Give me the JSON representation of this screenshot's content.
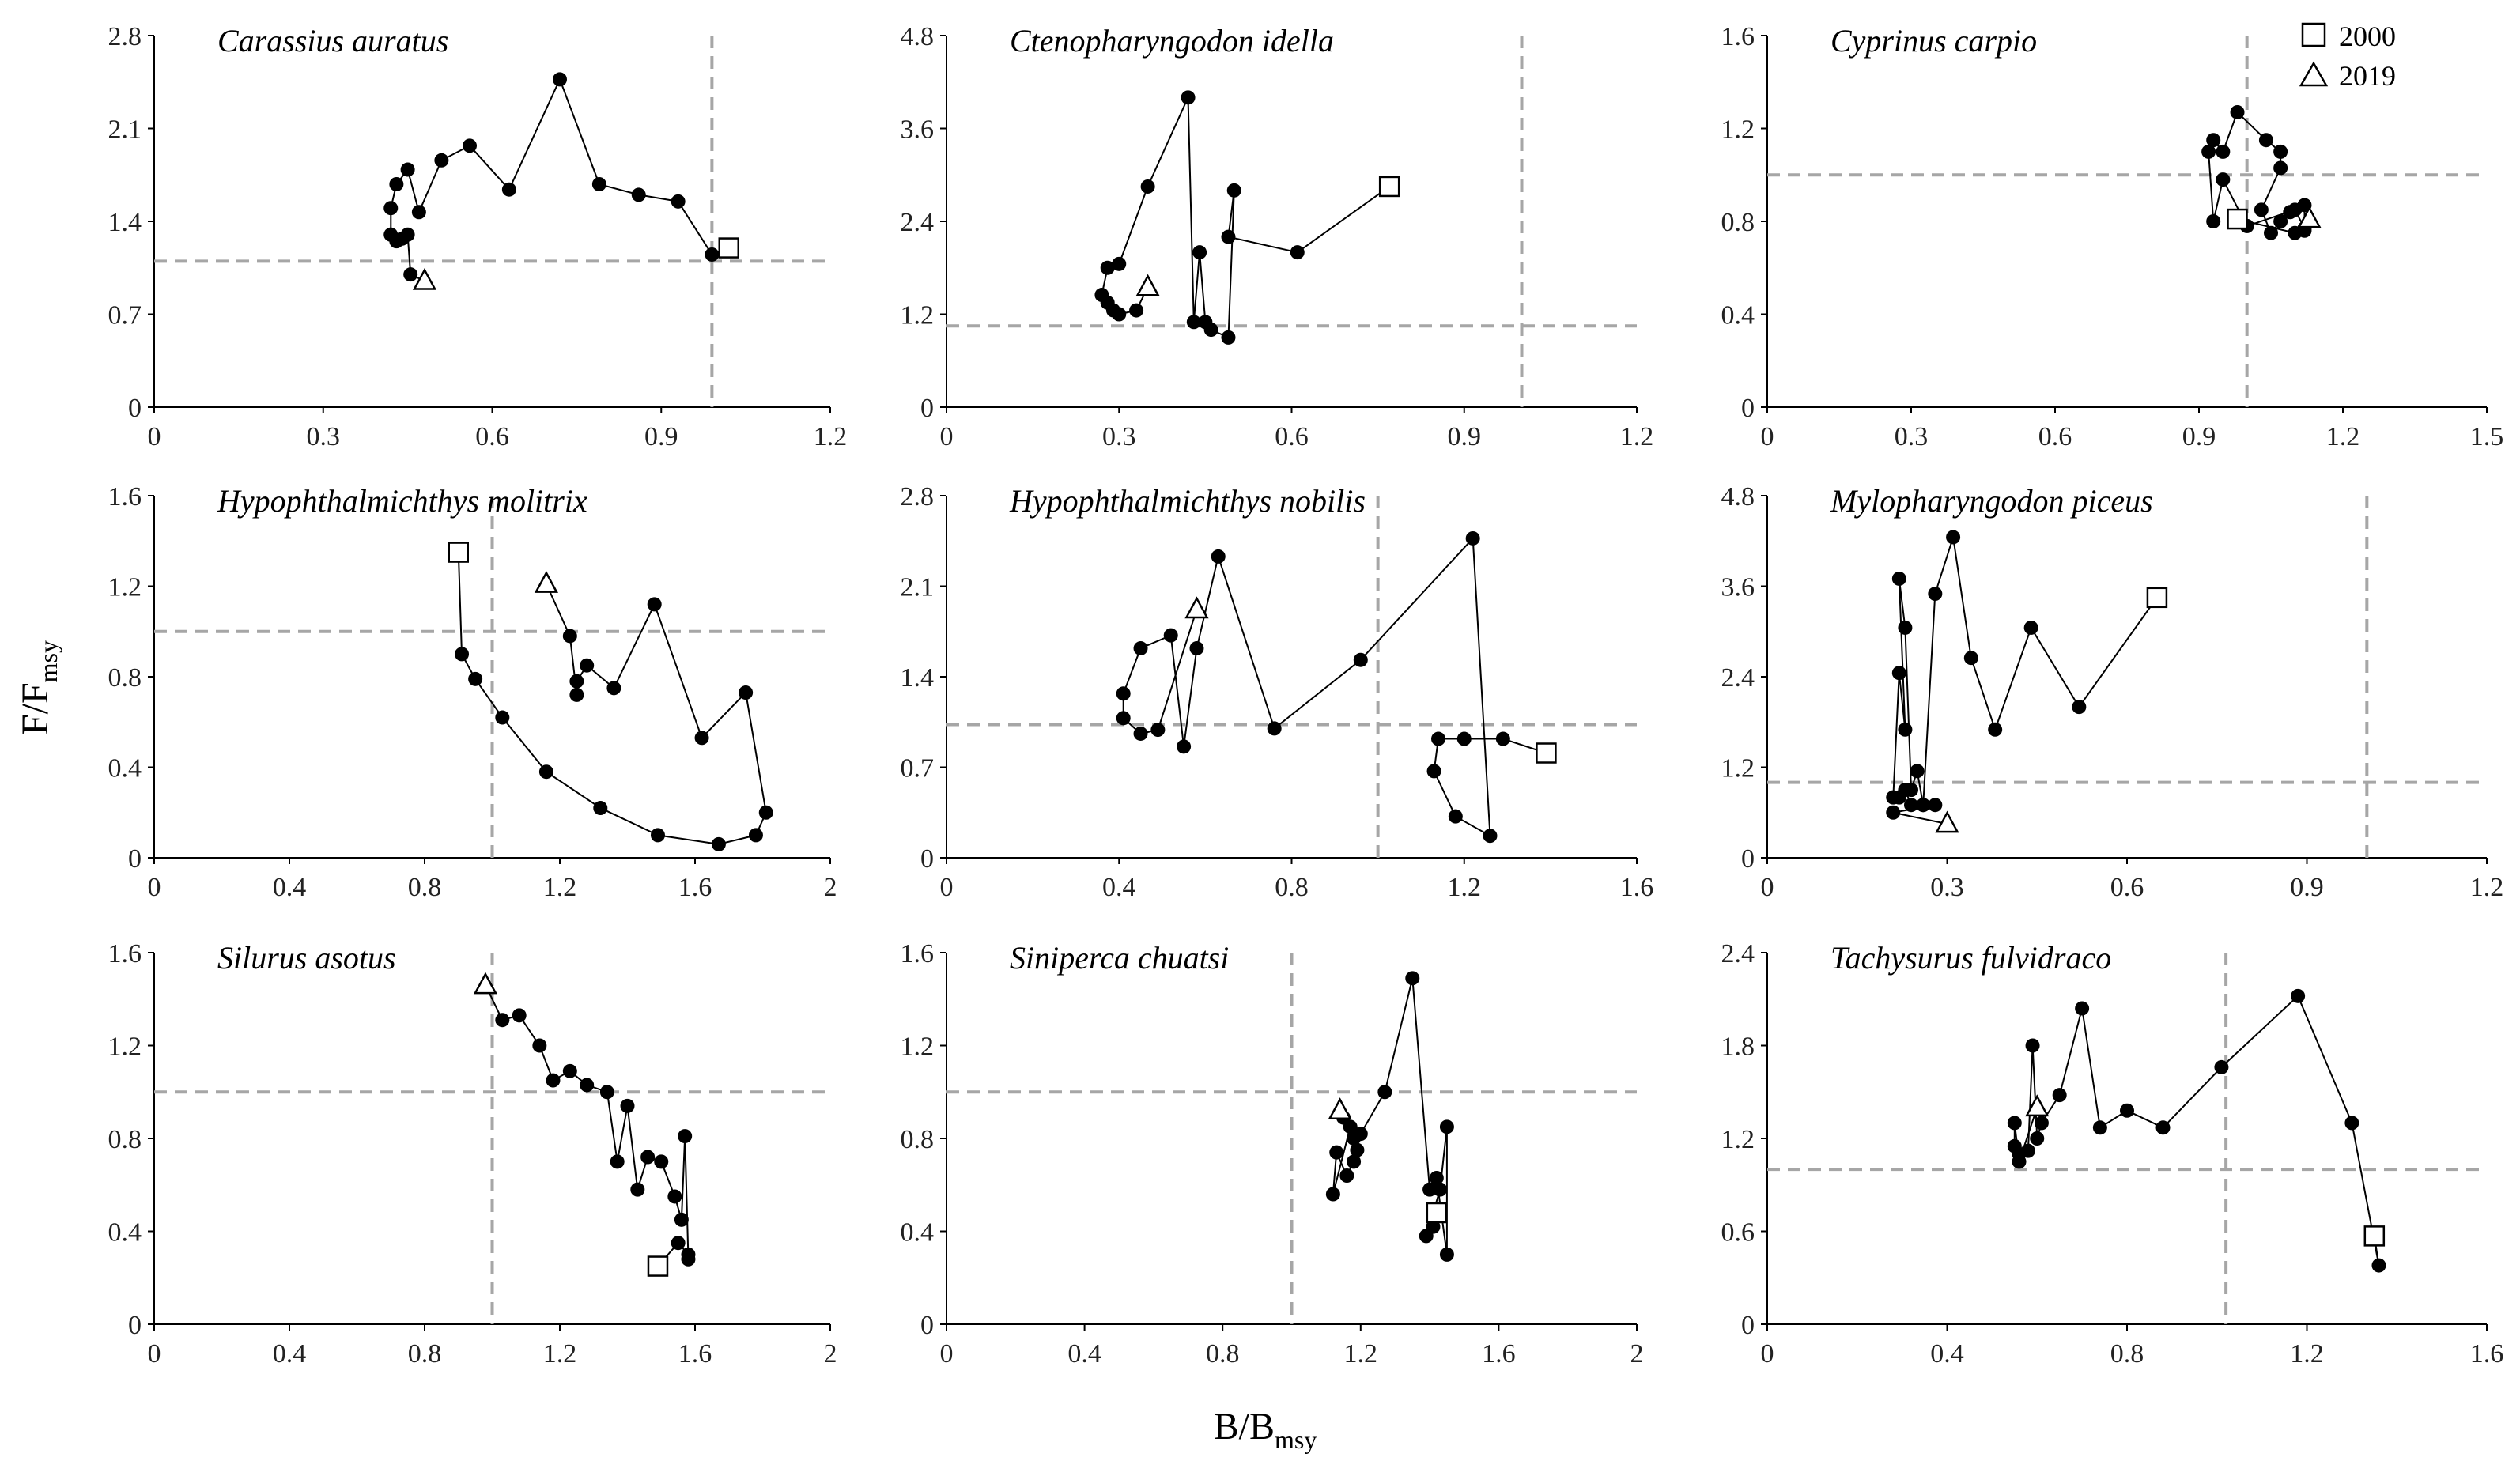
{
  "chart_data": {
    "type": "scatter",
    "xlabel": {
      "main": "B/B",
      "sub": "msy"
    },
    "ylabel": {
      "main": "F/F",
      "sub": "msy"
    },
    "legend": {
      "position": "top-right",
      "entries": [
        {
          "marker": "square",
          "label": "2000"
        },
        {
          "marker": "triangle",
          "label": "2019"
        }
      ]
    },
    "colors": {
      "series": "#000000",
      "reference": "#a6a6a6",
      "axis": "#000000",
      "marker_fill": "#000000",
      "open_marker_fill": "#ffffff"
    },
    "panels": [
      {
        "title": "Carassius auratus",
        "xlim": [
          0,
          1.2
        ],
        "xticks": [
          "0",
          "0.3",
          "0.6",
          "0.9",
          "1.2"
        ],
        "ylim": [
          0,
          2.8
        ],
        "yticks": [
          "0",
          "0.7",
          "1.4",
          "2.1",
          "2.8"
        ],
        "ref_x": 0.99,
        "ref_y": 1.1,
        "start": [
          1.02,
          1.2
        ],
        "end": [
          0.48,
          0.95
        ],
        "points": [
          [
            0.99,
            1.15
          ],
          [
            0.93,
            1.55
          ],
          [
            0.86,
            1.6
          ],
          [
            0.79,
            1.68
          ],
          [
            0.72,
            2.47
          ],
          [
            0.63,
            1.64
          ],
          [
            0.56,
            1.97
          ],
          [
            0.51,
            1.86
          ],
          [
            0.47,
            1.47
          ],
          [
            0.45,
            1.79
          ],
          [
            0.43,
            1.68
          ],
          [
            0.42,
            1.5
          ],
          [
            0.42,
            1.3
          ],
          [
            0.43,
            1.25
          ],
          [
            0.44,
            1.27
          ],
          [
            0.45,
            1.3
          ],
          [
            0.455,
            1.0
          ]
        ]
      },
      {
        "title": "Ctenopharyngodon idella",
        "xlim": [
          0,
          1.2
        ],
        "xticks": [
          "0",
          "0.3",
          "0.6",
          "0.9",
          "1.2"
        ],
        "ylim": [
          0,
          4.8
        ],
        "yticks": [
          "0",
          "1.2",
          "2.4",
          "3.6",
          "4.8"
        ],
        "ref_x": 1.0,
        "ref_y": 1.05,
        "start": [
          0.77,
          2.85
        ],
        "end": [
          0.35,
          1.55
        ],
        "points": [
          [
            0.61,
            2.0
          ],
          [
            0.49,
            2.2
          ],
          [
            0.5,
            2.8
          ],
          [
            0.49,
            0.9
          ],
          [
            0.46,
            1.0
          ],
          [
            0.45,
            1.1
          ],
          [
            0.44,
            2.0
          ],
          [
            0.43,
            1.1
          ],
          [
            0.42,
            4.0
          ],
          [
            0.35,
            2.85
          ],
          [
            0.3,
            1.85
          ],
          [
            0.28,
            1.8
          ],
          [
            0.27,
            1.45
          ],
          [
            0.28,
            1.35
          ],
          [
            0.29,
            1.25
          ],
          [
            0.3,
            1.2
          ],
          [
            0.33,
            1.25
          ]
        ]
      },
      {
        "title": "Cyprinus carpio",
        "xlim": [
          0,
          1.5
        ],
        "xticks": [
          "0",
          "0.3",
          "0.6",
          "0.9",
          "1.2",
          "1.5"
        ],
        "ylim": [
          0,
          1.6
        ],
        "yticks": [
          "0",
          "0.4",
          "0.8",
          "1.2",
          "1.6"
        ],
        "ref_x": 1.0,
        "ref_y": 1.0,
        "start": [
          0.98,
          0.81
        ],
        "end": [
          1.13,
          0.81
        ],
        "points": [
          [
            1.1,
            0.75
          ],
          [
            1.12,
            0.76
          ],
          [
            1.12,
            0.87
          ],
          [
            1.09,
            0.84
          ],
          [
            1.07,
            0.8
          ],
          [
            1.05,
            0.75
          ],
          [
            1.03,
            0.85
          ],
          [
            1.07,
            1.03
          ],
          [
            1.07,
            1.1
          ],
          [
            1.04,
            1.15
          ],
          [
            0.98,
            1.27
          ],
          [
            0.95,
            1.1
          ],
          [
            0.93,
            1.15
          ],
          [
            0.92,
            1.1
          ],
          [
            0.93,
            0.8
          ],
          [
            0.95,
            0.98
          ],
          [
            1.0,
            0.78
          ],
          [
            1.1,
            0.85
          ],
          [
            1.12,
            0.77
          ]
        ]
      },
      {
        "title": "Hypophthalmichthys molitrix",
        "xlim": [
          0,
          2
        ],
        "xticks": [
          "0",
          "0.4",
          "0.8",
          "1.2",
          "1.6",
          "2"
        ],
        "ylim": [
          0,
          1.6
        ],
        "yticks": [
          "0",
          "0.4",
          "0.8",
          "1.2",
          "1.6"
        ],
        "ref_x": 1.0,
        "ref_y": 1.0,
        "start": [
          0.9,
          1.35
        ],
        "end": [
          1.16,
          1.21
        ],
        "points": [
          [
            0.91,
            0.9
          ],
          [
            0.95,
            0.79
          ],
          [
            1.03,
            0.62
          ],
          [
            1.16,
            0.38
          ],
          [
            1.32,
            0.22
          ],
          [
            1.49,
            0.1
          ],
          [
            1.67,
            0.06
          ],
          [
            1.78,
            0.1
          ],
          [
            1.81,
            0.2
          ],
          [
            1.75,
            0.73
          ],
          [
            1.62,
            0.53
          ],
          [
            1.48,
            1.12
          ],
          [
            1.36,
            0.75
          ],
          [
            1.28,
            0.85
          ],
          [
            1.25,
            0.78
          ],
          [
            1.25,
            0.72
          ],
          [
            1.23,
            0.98
          ]
        ]
      },
      {
        "title": "Hypophthalmichthys nobilis",
        "xlim": [
          0,
          1.6
        ],
        "xticks": [
          "0",
          "0.4",
          "0.8",
          "1.2",
          "1.6"
        ],
        "ylim": [
          0,
          2.8
        ],
        "yticks": [
          "0",
          "0.7",
          "1.4",
          "2.1",
          "2.8"
        ],
        "ref_x": 1.0,
        "ref_y": 1.03,
        "start": [
          1.39,
          0.81
        ],
        "end": [
          0.58,
          1.92
        ],
        "points": [
          [
            1.29,
            0.92
          ],
          [
            1.2,
            0.92
          ],
          [
            1.14,
            0.92
          ],
          [
            1.13,
            0.67
          ],
          [
            1.18,
            0.32
          ],
          [
            1.26,
            0.17
          ],
          [
            1.22,
            2.47
          ],
          [
            0.96,
            1.53
          ],
          [
            0.76,
            1.0
          ],
          [
            0.63,
            2.33
          ],
          [
            0.58,
            1.62
          ],
          [
            0.55,
            0.86
          ],
          [
            0.52,
            1.72
          ],
          [
            0.45,
            1.62
          ],
          [
            0.41,
            1.27
          ],
          [
            0.41,
            1.08
          ],
          [
            0.45,
            0.96
          ],
          [
            0.49,
            0.99
          ]
        ]
      },
      {
        "title": "Mylopharyngodon piceus",
        "xlim": [
          0,
          1.2
        ],
        "xticks": [
          "0",
          "0.3",
          "0.6",
          "0.9",
          "1.2"
        ],
        "ylim": [
          0,
          4.8
        ],
        "yticks": [
          "0",
          "1.2",
          "2.4",
          "3.6",
          "4.8"
        ],
        "ref_x": 1.0,
        "ref_y": 1.0,
        "start": [
          0.65,
          3.45
        ],
        "end": [
          0.3,
          0.45
        ],
        "points": [
          [
            0.52,
            2.0
          ],
          [
            0.44,
            3.05
          ],
          [
            0.38,
            1.7
          ],
          [
            0.34,
            2.65
          ],
          [
            0.31,
            4.25
          ],
          [
            0.28,
            3.5
          ],
          [
            0.26,
            0.7
          ],
          [
            0.25,
            1.15
          ],
          [
            0.24,
            0.9
          ],
          [
            0.23,
            3.05
          ],
          [
            0.22,
            3.7
          ],
          [
            0.23,
            1.7
          ],
          [
            0.22,
            2.45
          ],
          [
            0.21,
            0.8
          ],
          [
            0.22,
            0.8
          ],
          [
            0.23,
            0.9
          ],
          [
            0.24,
            0.7
          ],
          [
            0.26,
            0.7
          ],
          [
            0.28,
            0.7
          ],
          [
            0.21,
            0.6
          ]
        ]
      },
      {
        "title": "Silurus asotus",
        "xlim": [
          0,
          2
        ],
        "xticks": [
          "0",
          "0.4",
          "0.8",
          "1.2",
          "1.6",
          "2"
        ],
        "ylim": [
          0,
          1.6
        ],
        "yticks": [
          "0",
          "0.4",
          "0.8",
          "1.2",
          "1.6"
        ],
        "ref_x": 1.0,
        "ref_y": 1.0,
        "start": [
          1.49,
          0.25
        ],
        "end": [
          0.98,
          1.46
        ],
        "points": [
          [
            1.55,
            0.35
          ],
          [
            1.58,
            0.3
          ],
          [
            1.58,
            0.28
          ],
          [
            1.57,
            0.81
          ],
          [
            1.56,
            0.45
          ],
          [
            1.54,
            0.55
          ],
          [
            1.5,
            0.7
          ],
          [
            1.46,
            0.72
          ],
          [
            1.43,
            0.58
          ],
          [
            1.4,
            0.94
          ],
          [
            1.37,
            0.7
          ],
          [
            1.34,
            1.0
          ],
          [
            1.28,
            1.03
          ],
          [
            1.23,
            1.09
          ],
          [
            1.18,
            1.05
          ],
          [
            1.14,
            1.2
          ],
          [
            1.08,
            1.33
          ],
          [
            1.03,
            1.31
          ]
        ]
      },
      {
        "title": "Siniperca chuatsi",
        "xlim": [
          0,
          2
        ],
        "xticks": [
          "0",
          "0.4",
          "0.8",
          "1.2",
          "1.6",
          "2"
        ],
        "ylim": [
          0,
          1.6
        ],
        "yticks": [
          "0",
          "0.4",
          "0.8",
          "1.2",
          "1.6"
        ],
        "ref_x": 1.0,
        "ref_y": 1.0,
        "start": [
          1.42,
          0.48
        ],
        "end": [
          1.14,
          0.92
        ],
        "points": [
          [
            1.41,
            0.42
          ],
          [
            1.39,
            0.38
          ],
          [
            1.43,
            0.58
          ],
          [
            1.45,
            0.85
          ],
          [
            1.45,
            0.3
          ],
          [
            1.42,
            0.63
          ],
          [
            1.4,
            0.58
          ],
          [
            1.35,
            1.49
          ],
          [
            1.27,
            1.0
          ],
          [
            1.2,
            0.82
          ],
          [
            1.18,
            0.8
          ],
          [
            1.19,
            0.75
          ],
          [
            1.18,
            0.7
          ],
          [
            1.16,
            0.64
          ],
          [
            1.13,
            0.74
          ],
          [
            1.12,
            0.56
          ],
          [
            1.17,
            0.85
          ],
          [
            1.15,
            0.89
          ]
        ]
      },
      {
        "title": "Tachysurus fulvidraco",
        "xlim": [
          0,
          1.6
        ],
        "xticks": [
          "0",
          "0.4",
          "0.8",
          "1.2",
          "1.6"
        ],
        "ylim": [
          0,
          2.4
        ],
        "yticks": [
          "0",
          "0.6",
          "1.2",
          "1.8",
          "2.4"
        ],
        "ref_x": 1.02,
        "ref_y": 1.0,
        "start": [
          1.35,
          0.57
        ],
        "end": [
          0.6,
          1.4
        ],
        "points": [
          [
            1.36,
            0.38
          ],
          [
            1.3,
            1.3
          ],
          [
            1.18,
            2.12
          ],
          [
            1.01,
            1.66
          ],
          [
            0.88,
            1.27
          ],
          [
            0.8,
            1.38
          ],
          [
            0.74,
            1.27
          ],
          [
            0.7,
            2.04
          ],
          [
            0.65,
            1.48
          ],
          [
            0.61,
            1.3
          ],
          [
            0.6,
            1.2
          ],
          [
            0.59,
            1.8
          ],
          [
            0.58,
            1.12
          ],
          [
            0.56,
            1.1
          ],
          [
            0.55,
            1.15
          ],
          [
            0.55,
            1.3
          ],
          [
            0.56,
            1.05
          ]
        ]
      }
    ]
  }
}
